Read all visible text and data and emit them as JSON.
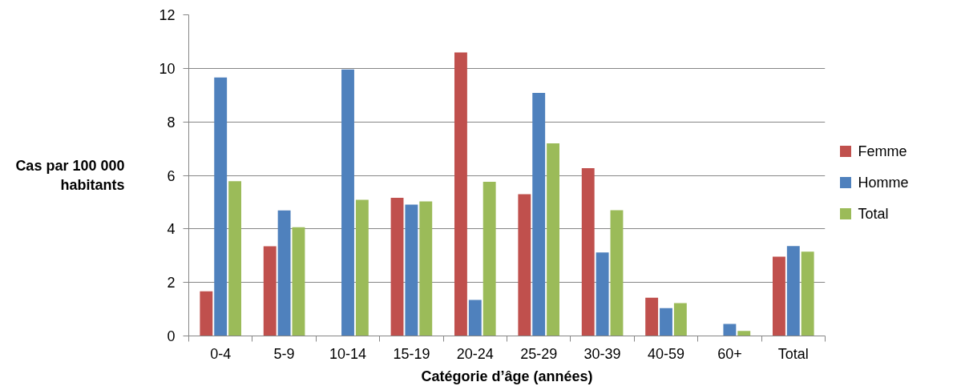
{
  "chart_data": {
    "type": "bar",
    "categories": [
      "0-4",
      "5-9",
      "10-14",
      "15-19",
      "20-24",
      "25-29",
      "30-39",
      "40-59",
      "60+",
      "Total"
    ],
    "series": [
      {
        "name": "Femme",
        "color": "#c0504d",
        "values": [
          1.67,
          3.35,
          0,
          5.16,
          10.59,
          5.3,
          6.27,
          1.43,
          0,
          2.96
        ]
      },
      {
        "name": "Homme",
        "color": "#4f81bd",
        "values": [
          9.66,
          4.69,
          9.96,
          4.91,
          1.35,
          9.08,
          3.12,
          1.04,
          0.45,
          3.36
        ]
      },
      {
        "name": "Total",
        "color": "#9bbb59",
        "values": [
          5.78,
          4.06,
          5.09,
          5.03,
          5.76,
          7.2,
          4.7,
          1.23,
          0.19,
          3.15
        ]
      }
    ],
    "xlabel": "Catégorie d’âge (années)",
    "ylabel": "Cas par 100 000\nhabitants",
    "ylim": [
      0,
      12
    ],
    "yticks": [
      0,
      2,
      4,
      6,
      8,
      10,
      12
    ],
    "grid": "y",
    "legend": "right"
  }
}
